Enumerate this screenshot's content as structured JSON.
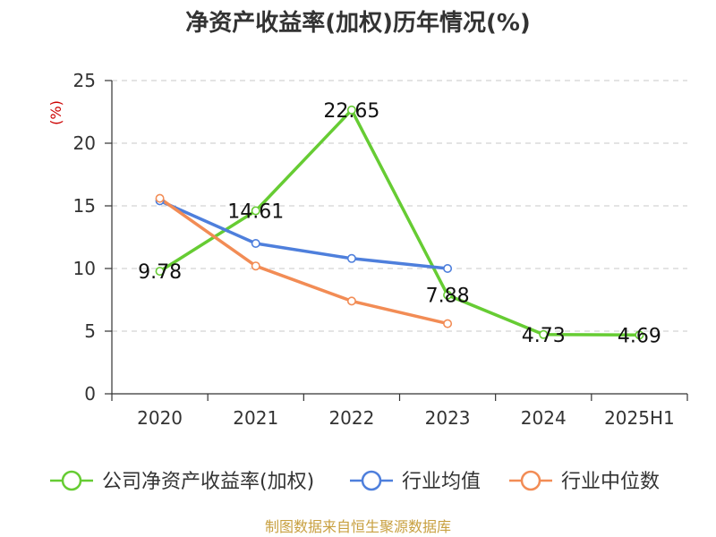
{
  "chart_data": {
    "type": "line",
    "title": "净资产收益率(加权)历年情况(%)",
    "ylabel": "(%)",
    "xlabel": "",
    "categories": [
      "2020",
      "2021",
      "2022",
      "2023",
      "2024",
      "2025H1"
    ],
    "ylim": [
      0,
      25
    ],
    "yticks": [
      0,
      5,
      10,
      15,
      20,
      25
    ],
    "grid": true,
    "legend_position": "bottom",
    "series": [
      {
        "name": "公司净资产收益率(加权)",
        "color": "#66cc33",
        "values": [
          9.78,
          14.61,
          22.65,
          7.88,
          4.73,
          4.69
        ],
        "labels": [
          "9.78",
          "14.61",
          "22.65",
          "7.88",
          "4.73",
          "4.69"
        ]
      },
      {
        "name": "行业均值",
        "color": "#4e7fdc",
        "values": [
          15.4,
          12.0,
          10.8,
          10.0,
          null,
          null
        ]
      },
      {
        "name": "行业中位数",
        "color": "#f28c55",
        "values": [
          15.6,
          10.2,
          7.4,
          5.6,
          null,
          null
        ]
      }
    ],
    "source": "制图数据来自恒生聚源数据库"
  }
}
